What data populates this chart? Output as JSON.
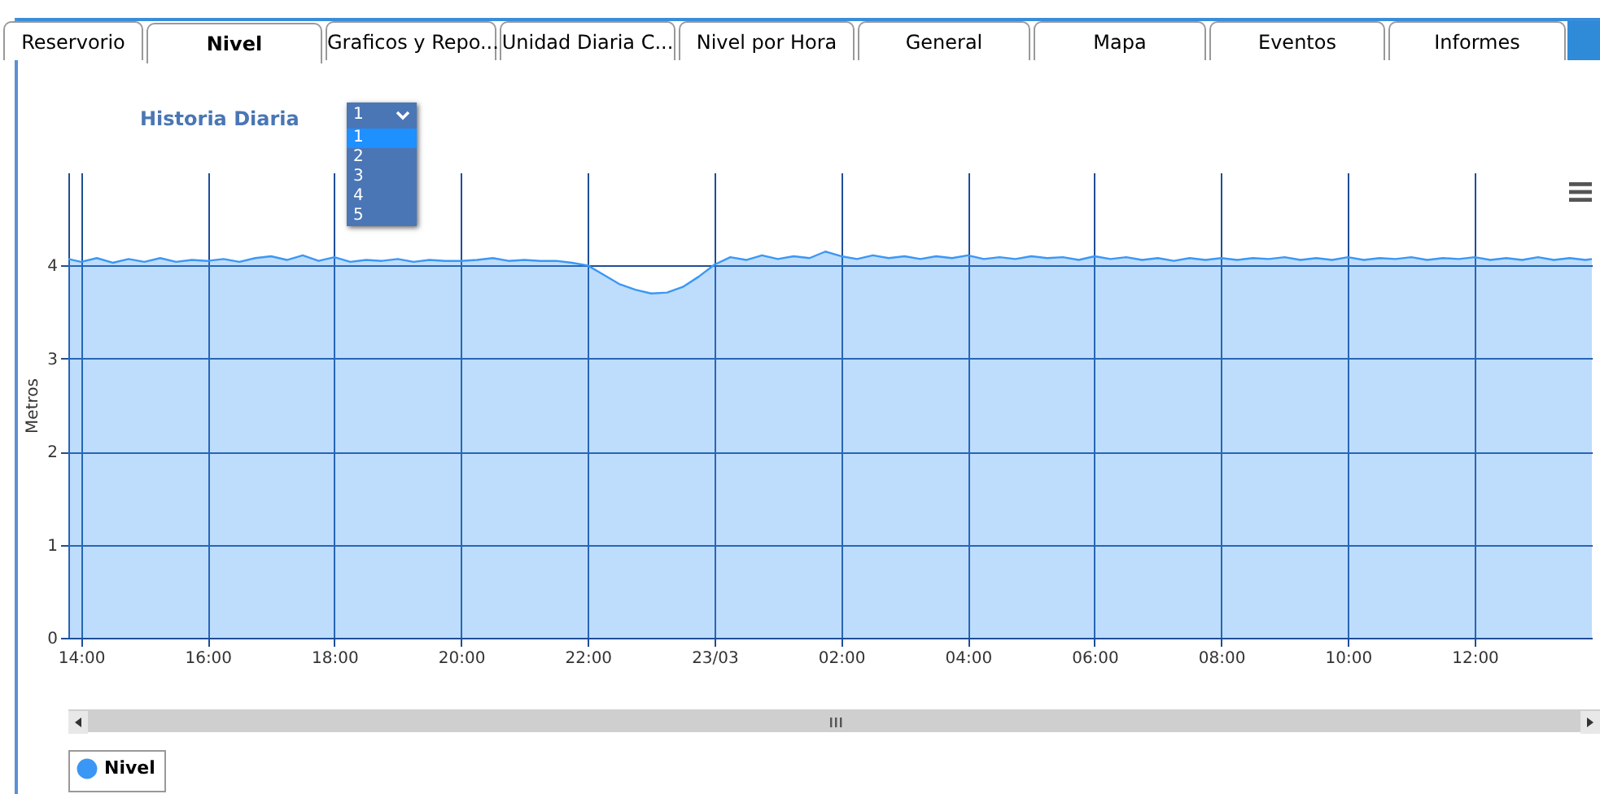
{
  "chart_data": {
    "type": "area",
    "title": "Historia Diaria",
    "ylabel": "Metros",
    "annotations": [
      "Reservorio",
      "Nivel",
      "Graficos y Repo...",
      "Unidad Diaria C...",
      "Nivel por Hora",
      "General",
      "Mapa",
      "Eventos",
      "Informes",
      "1",
      "1",
      "2",
      "3",
      "4",
      "5"
    ],
    "x": [
      "--03-22T13:48",
      "--03-22T14:00",
      "--03-22T14:15",
      "--03-22T14:30",
      "--03-22T14:45",
      "--03-22T15:00",
      "--03-22T15:15",
      "--03-22T15:30",
      "--03-22T15:45",
      "--03-22T16:00",
      "--03-22T16:15",
      "--03-22T16:30",
      "--03-22T16:45",
      "--03-22T17:00",
      "--03-22T17:15",
      "--03-22T17:30",
      "--03-22T17:45",
      "--03-22T18:00",
      "--03-22T18:15",
      "--03-22T18:30",
      "--03-22T18:45",
      "--03-22T19:00",
      "--03-22T19:15",
      "--03-22T19:30",
      "--03-22T19:45",
      "--03-22T20:00",
      "--03-22T20:15",
      "--03-22T20:30",
      "--03-22T20:45",
      "--03-22T21:00",
      "--03-22T21:15",
      "--03-22T21:30",
      "--03-22T21:45",
      "--03-22T22:00",
      "--03-22T22:15",
      "--03-22T22:30",
      "--03-22T22:45",
      "--03-22T23:00",
      "--03-22T23:15",
      "--03-22T23:30",
      "--03-22T23:45",
      "--03-23T00:00",
      "--03-23T00:15",
      "--03-23T00:30",
      "--03-23T00:45",
      "--03-23T01:00",
      "--03-23T01:15",
      "--03-23T01:30",
      "--03-23T01:45",
      "--03-23T02:00",
      "--03-23T02:15",
      "--03-23T02:30",
      "--03-23T02:45",
      "--03-23T03:00",
      "--03-23T03:15",
      "--03-23T03:30",
      "--03-23T03:45",
      "--03-23T04:00",
      "--03-23T04:15",
      "--03-23T04:30",
      "--03-23T04:45",
      "--03-23T05:00",
      "--03-23T05:15",
      "--03-23T05:30",
      "--03-23T05:45",
      "--03-23T06:00",
      "--03-23T06:15",
      "--03-23T06:30",
      "--03-23T06:45",
      "--03-23T07:00",
      "--03-23T07:15",
      "--03-23T07:30",
      "--03-23T07:45",
      "--03-23T08:00",
      "--03-23T08:15",
      "--03-23T08:30",
      "--03-23T08:45",
      "--03-23T09:00",
      "--03-23T09:15",
      "--03-23T09:30",
      "--03-23T09:45",
      "--03-23T10:00",
      "--03-23T10:15",
      "--03-23T10:30",
      "--03-23T10:45",
      "--03-23T11:00",
      "--03-23T11:15",
      "--03-23T11:30",
      "--03-23T11:45",
      "--03-23T12:00",
      "--03-23T12:15",
      "--03-23T12:30",
      "--03-23T12:45",
      "--03-23T13:00",
      "--03-23T13:15",
      "--03-23T13:30",
      "--03-23T13:45",
      "--03-23T13:51"
    ],
    "series": [
      {
        "name": "Nivel",
        "color": "#3b97f5",
        "values": [
          4.07,
          4.04,
          4.08,
          4.03,
          4.07,
          4.04,
          4.08,
          4.04,
          4.06,
          4.05,
          4.07,
          4.04,
          4.08,
          4.1,
          4.06,
          4.11,
          4.05,
          4.09,
          4.04,
          4.06,
          4.05,
          4.07,
          4.04,
          4.06,
          4.05,
          4.05,
          4.06,
          4.08,
          4.05,
          4.06,
          4.05,
          4.05,
          4.03,
          4.0,
          3.9,
          3.8,
          3.74,
          3.7,
          3.71,
          3.77,
          3.88,
          4.01,
          4.09,
          4.06,
          4.11,
          4.07,
          4.1,
          4.08,
          4.15,
          4.1,
          4.07,
          4.11,
          4.08,
          4.1,
          4.07,
          4.1,
          4.08,
          4.11,
          4.07,
          4.09,
          4.07,
          4.1,
          4.08,
          4.09,
          4.06,
          4.1,
          4.07,
          4.09,
          4.06,
          4.08,
          4.05,
          4.08,
          4.06,
          4.08,
          4.06,
          4.08,
          4.07,
          4.09,
          4.06,
          4.08,
          4.06,
          4.09,
          4.06,
          4.08,
          4.07,
          4.09,
          4.06,
          4.08,
          4.07,
          4.09,
          4.06,
          4.08,
          4.06,
          4.09,
          4.06,
          4.08,
          4.06,
          4.07
        ]
      }
    ],
    "xlim": [
      "--03-22T13:48",
      "--03-23T13:51"
    ],
    "xticks": [
      {
        "value": "--03-22T14:00",
        "label": "14:00"
      },
      {
        "value": "--03-22T16:00",
        "label": "16:00"
      },
      {
        "value": "--03-22T18:00",
        "label": "18:00"
      },
      {
        "value": "--03-22T20:00",
        "label": "20:00"
      },
      {
        "value": "--03-22T22:00",
        "label": "22:00"
      },
      {
        "value": "--03-23T00:00",
        "label": "23/03"
      },
      {
        "value": "--03-23T02:00",
        "label": "02:00"
      },
      {
        "value": "--03-23T04:00",
        "label": "04:00"
      },
      {
        "value": "--03-23T06:00",
        "label": "06:00"
      },
      {
        "value": "--03-23T08:00",
        "label": "08:00"
      },
      {
        "value": "--03-23T10:00",
        "label": "10:00"
      },
      {
        "value": "--03-23T12:00",
        "label": "12:00"
      }
    ],
    "ylim": [
      0,
      5
    ],
    "yticks": [
      0,
      1,
      2,
      3,
      4
    ],
    "grid": true,
    "legend": "bottom"
  }
}
